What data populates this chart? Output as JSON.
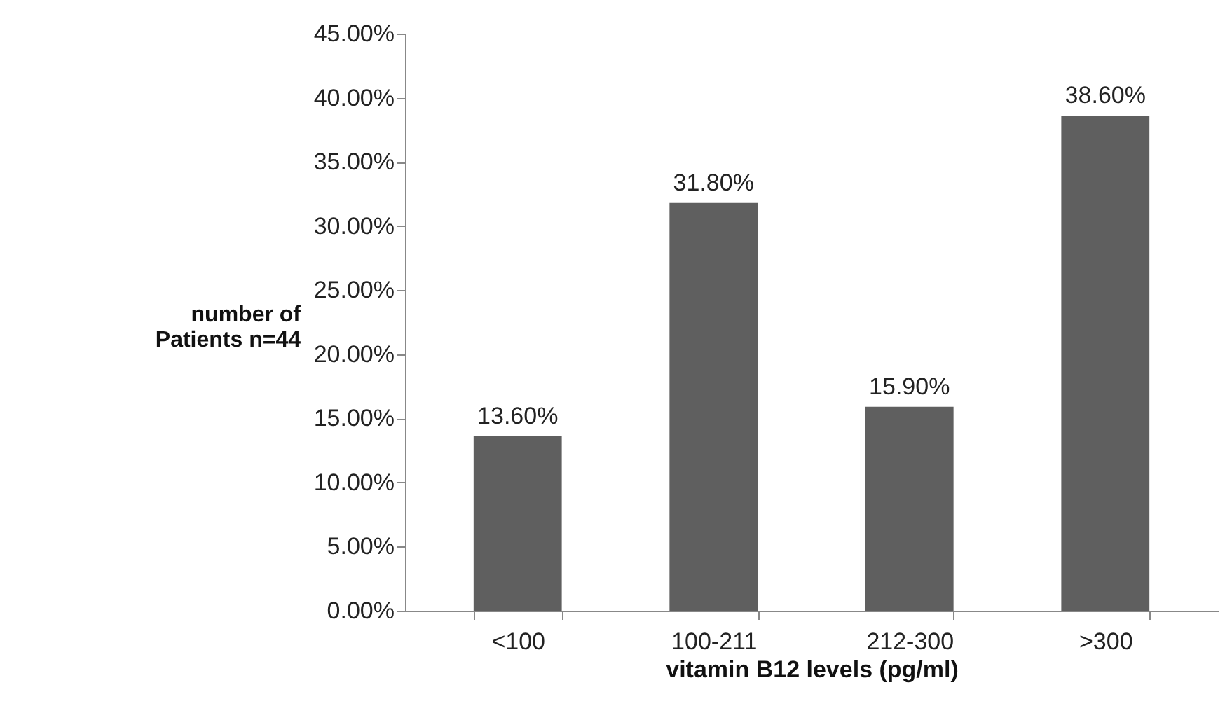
{
  "chart_data": {
    "type": "bar",
    "xlabel": "vitamin B12 levels (pg/ml)",
    "ylabel": "number of Patients n=44",
    "categories": [
      "<100",
      "100-211",
      "212-300",
      ">300"
    ],
    "values": [
      13.6,
      31.8,
      15.9,
      38.6
    ],
    "value_labels": [
      "13.60%",
      "31.80%",
      "15.90%",
      "38.60%"
    ],
    "color": "#5f5f5f",
    "ylim": [
      0,
      45
    ],
    "yticks": [
      {
        "value": 0,
        "label": "0.00%"
      },
      {
        "value": 5,
        "label": "5.00%"
      },
      {
        "value": 10,
        "label": "10.00%"
      },
      {
        "value": 15,
        "label": "15.00%"
      },
      {
        "value": 20,
        "label": "20.00%"
      },
      {
        "value": 25,
        "label": "25.00%"
      },
      {
        "value": 30,
        "label": "30.00%"
      },
      {
        "value": 35,
        "label": "35.00%"
      },
      {
        "value": 40,
        "label": "40.00%"
      },
      {
        "value": 45,
        "label": "45.00%"
      }
    ],
    "grid": false
  }
}
